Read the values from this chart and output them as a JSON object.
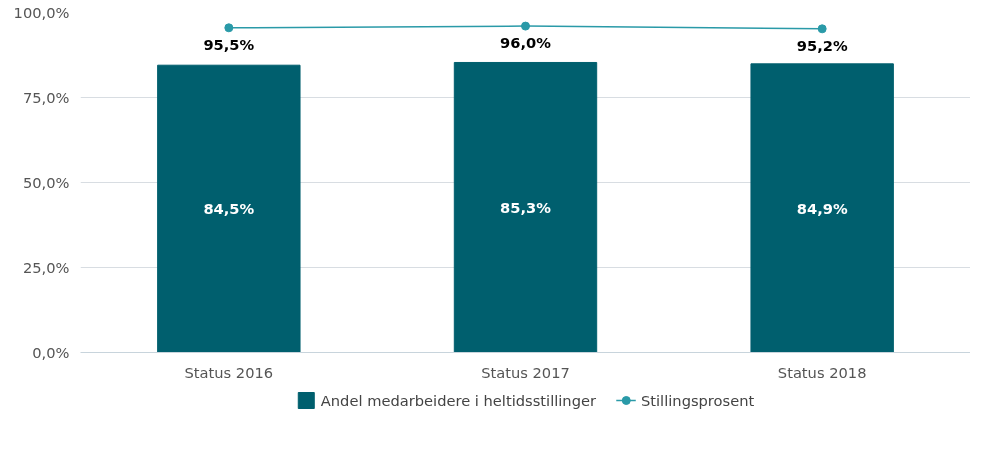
{
  "chart_data": {
    "type": "bar",
    "categories": [
      "Status 2016",
      "Status 2017",
      "Status 2018"
    ],
    "series": [
      {
        "name": "Andel medarbeidere i heltidsstillinger",
        "color": "#005f6e",
        "values": [
          84.5,
          85.3,
          84.9
        ],
        "value_labels": [
          "84,5%",
          "85,3%",
          "84,9%"
        ]
      },
      {
        "name": "Stillingsprosent",
        "type": "line",
        "color": "#2a9aa8",
        "values": [
          95.5,
          96.0,
          95.2
        ],
        "value_labels": [
          "95,5%",
          "96,0%",
          "95,2%"
        ]
      }
    ],
    "ylim": [
      0,
      100
    ],
    "yticks": [
      {
        "value": 0,
        "label": "0,0%"
      },
      {
        "value": 25,
        "label": "25,0%"
      },
      {
        "value": 50,
        "label": "50,0%"
      },
      {
        "value": 75,
        "label": "75,0%"
      },
      {
        "value": 100,
        "label": "100,0%"
      }
    ],
    "grid": "y",
    "legend": "bottom",
    "marker": "circle",
    "line_style": "solid"
  }
}
